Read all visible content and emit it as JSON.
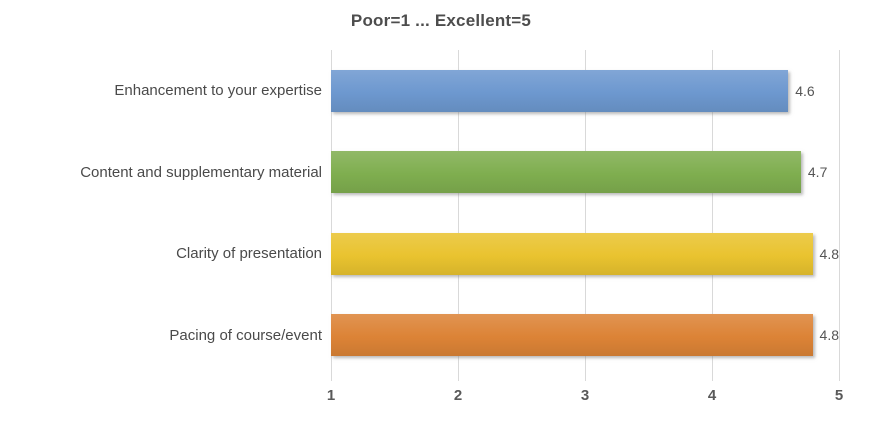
{
  "chart_data": {
    "type": "bar",
    "orientation": "horizontal",
    "title": "Poor=1 ... Excellent=5",
    "categories": [
      "Enhancement to your expertise",
      "Content and supplementary material",
      "Clarity of presentation",
      "Pacing of course/event"
    ],
    "values": [
      4.6,
      4.7,
      4.8,
      4.8
    ],
    "data_labels": [
      "4.6",
      "4.7",
      "4.8",
      "4.8"
    ],
    "bar_colors": [
      "#6d98cf",
      "#7fae4f",
      "#e9c32f",
      "#dc8336"
    ],
    "xlim": [
      1,
      5
    ],
    "x_ticks": [
      "1",
      "2",
      "3",
      "4",
      "5"
    ],
    "xlabel": "",
    "ylabel": "",
    "grid": true,
    "legend": "none",
    "gridline_color": "#d9d9d9",
    "title_color": "#4d4d4d",
    "category_label_color": "#4a4a4a",
    "data_label_color": "#555555",
    "tick_label_color": "#595959",
    "background_color": "#ffffff"
  }
}
